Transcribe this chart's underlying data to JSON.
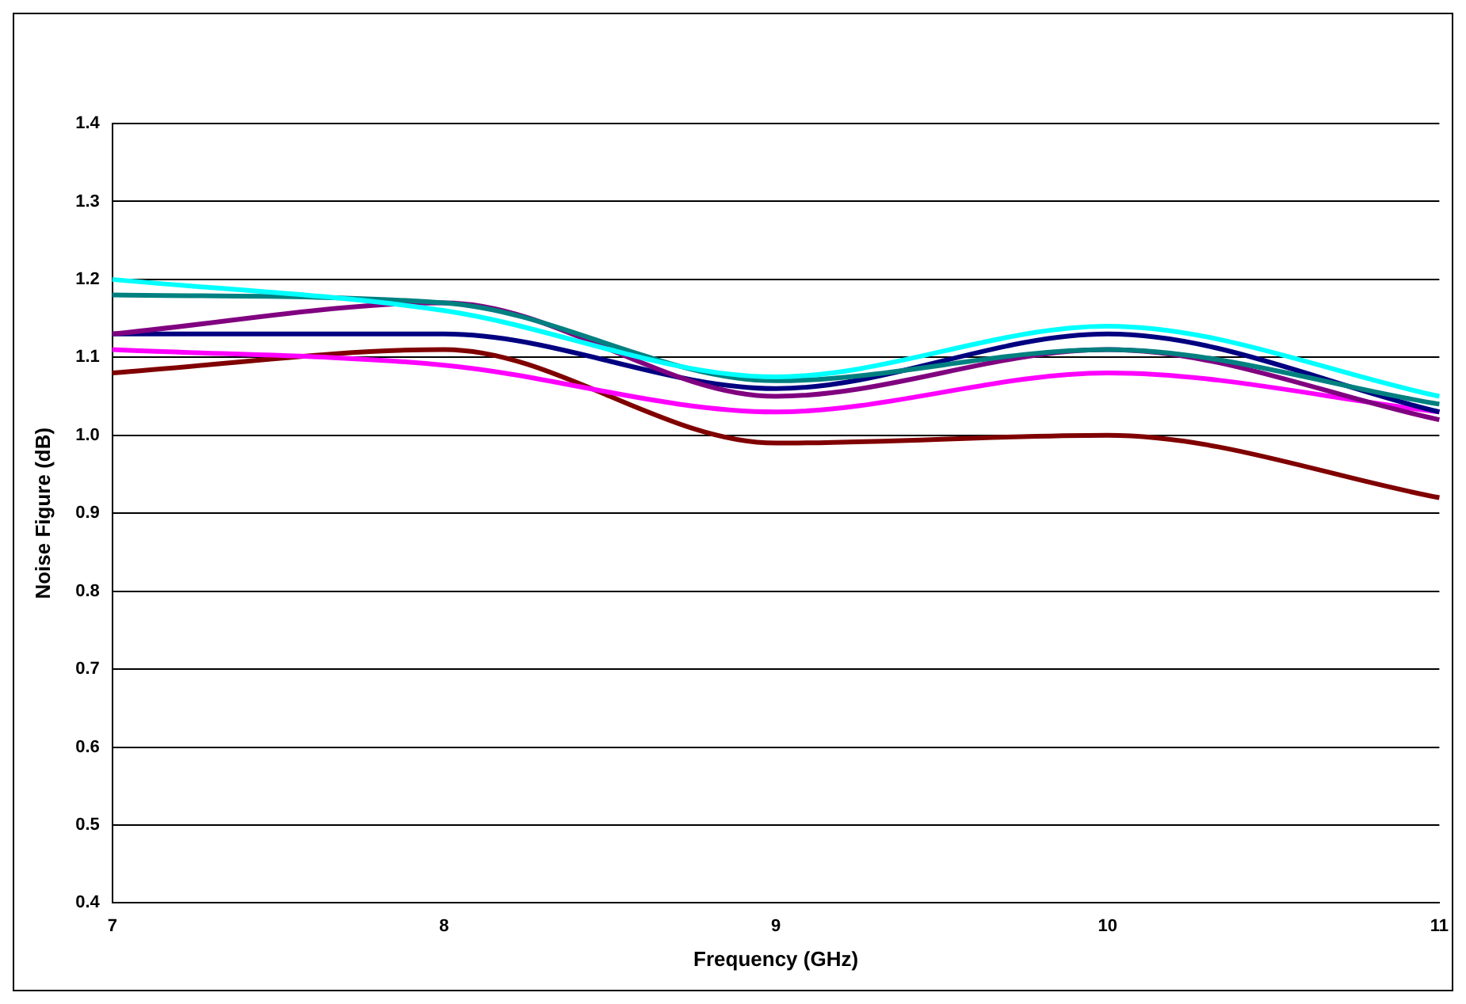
{
  "chart_data": {
    "type": "line",
    "xlabel": "Frequency (GHz)",
    "ylabel": "Noise Figure (dB)",
    "x": [
      7,
      8,
      9,
      10,
      11
    ],
    "series": [
      {
        "color": "#00ffff",
        "values": [
          1.2,
          1.16,
          1.075,
          1.14,
          1.05
        ]
      },
      {
        "color": "#008080",
        "values": [
          1.18,
          1.17,
          1.07,
          1.11,
          1.04
        ]
      },
      {
        "color": "#800080",
        "values": [
          1.13,
          1.17,
          1.05,
          1.11,
          1.02
        ]
      },
      {
        "color": "#000080",
        "values": [
          1.13,
          1.13,
          1.06,
          1.13,
          1.03
        ]
      },
      {
        "color": "#ff00ff",
        "values": [
          1.11,
          1.09,
          1.03,
          1.08,
          1.03
        ]
      },
      {
        "color": "#800000",
        "values": [
          1.08,
          1.11,
          0.99,
          1.0,
          0.92
        ]
      }
    ],
    "xlim": [
      7,
      11
    ],
    "xticks": [
      7,
      8,
      9,
      10,
      11
    ],
    "ylim": [
      0.4,
      1.4
    ],
    "yticks": [
      {
        "value": 0.4,
        "label": "0.4"
      },
      {
        "value": 0.5,
        "label": "0.5"
      },
      {
        "value": 0.6,
        "label": "0.6"
      },
      {
        "value": 0.7,
        "label": "0.7"
      },
      {
        "value": 0.8,
        "label": "0.8"
      },
      {
        "value": 0.9,
        "label": "0.9"
      },
      {
        "value": 1.0,
        "label": "1.0"
      },
      {
        "value": 1.1,
        "label": "1.1"
      },
      {
        "value": 1.2,
        "label": "1.2"
      },
      {
        "value": 1.3,
        "label": "1.3"
      },
      {
        "value": 1.4,
        "label": "1.4"
      }
    ],
    "grid": "y",
    "legend": false,
    "marker": "none",
    "line_style": "solid"
  }
}
